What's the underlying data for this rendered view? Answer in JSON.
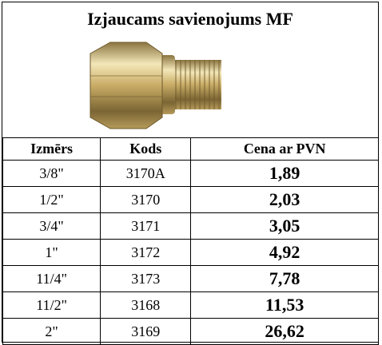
{
  "header": {
    "title": "Izjaucams savienojums MF"
  },
  "table": {
    "headers": [
      "Izmērs",
      "Kods",
      "Cena ar PVN"
    ],
    "rows": [
      [
        "3/8\"",
        "3170A",
        "1,89"
      ],
      [
        "1/2\"",
        "3170",
        "2,03"
      ],
      [
        "3/4\"",
        "3171",
        "3,05"
      ],
      [
        "1\"",
        "3172",
        "4,92"
      ],
      [
        "11/4\"",
        "3173",
        "7,78"
      ],
      [
        "11/2\"",
        "3168",
        "11,53"
      ],
      [
        "2\"",
        "3169",
        "26,62"
      ]
    ]
  }
}
